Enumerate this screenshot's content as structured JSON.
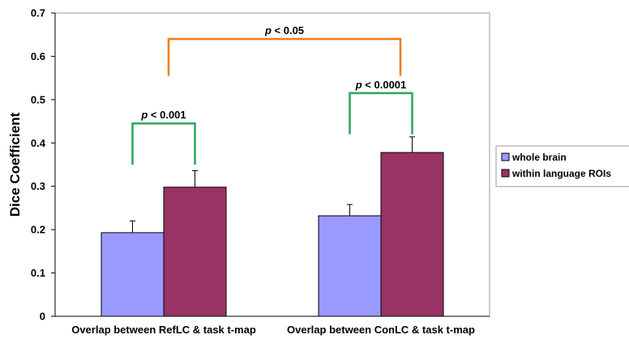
{
  "chart_data": {
    "type": "bar",
    "xlabel": "",
    "ylabel": "Dice Coefficient",
    "ylim": [
      0,
      0.7
    ],
    "yticks": [
      "0",
      "0.1",
      "0.2",
      "0.3",
      "0.4",
      "0.5",
      "0.6",
      "0.7"
    ],
    "categories": [
      "Overlap between RefLC & task t-map",
      "Overlap between ConLC & task t-map"
    ],
    "series": [
      {
        "name": "whole brain",
        "color": "#9999ff",
        "values": [
          0.193,
          0.232
        ],
        "error": [
          0.027,
          0.026
        ]
      },
      {
        "name": "within language ROIs",
        "color": "#993366",
        "values": [
          0.298,
          0.378
        ],
        "error": [
          0.038,
          0.036
        ]
      }
    ],
    "legend_position": "right",
    "grid": false,
    "annotations": [
      {
        "text": "p < 0.001",
        "category": 0,
        "kind": "within",
        "bracket_color": "#2eaa5e",
        "bracket_top": 0.445,
        "left_end": 0.35,
        "right_end": 0.35
      },
      {
        "text": "p < 0.0001",
        "category": 1,
        "kind": "within",
        "bracket_color": "#2eaa5e",
        "bracket_top": 0.515,
        "left_end": 0.42,
        "right_end": 0.42
      },
      {
        "text": "p < 0.05",
        "category": null,
        "kind": "between",
        "bracket_color": "#f07d1e",
        "bracket_top": 0.64,
        "left_end": 0.555,
        "right_end": 0.555
      }
    ]
  }
}
